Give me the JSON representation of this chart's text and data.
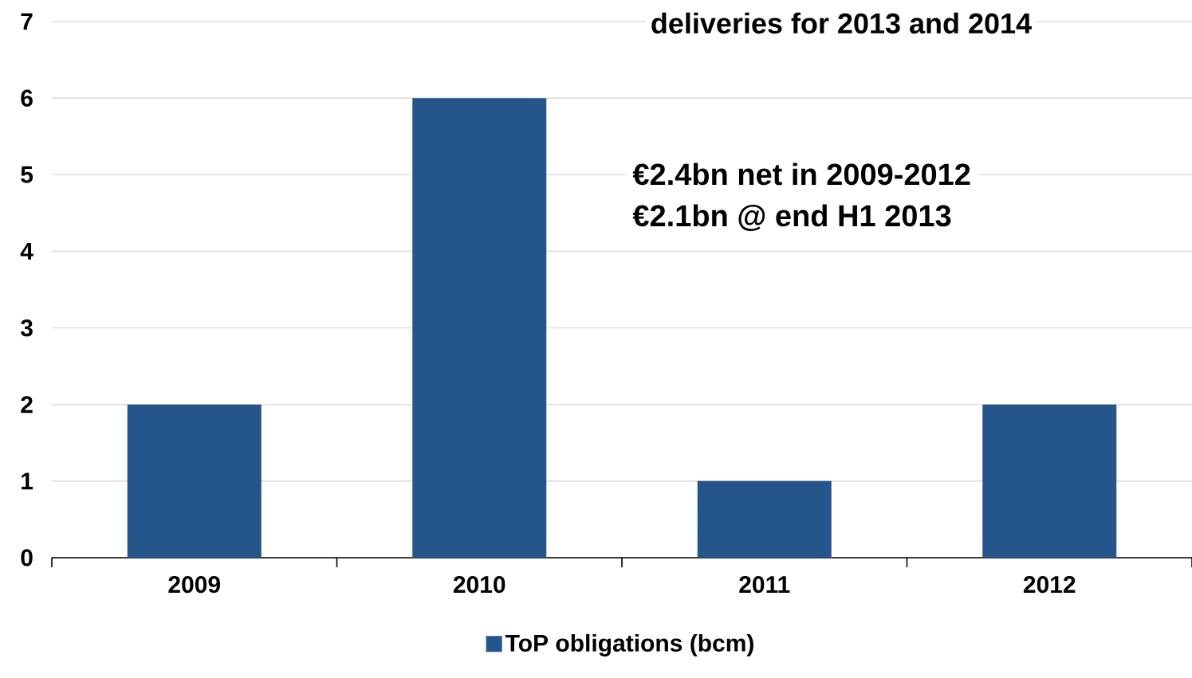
{
  "chart_data": {
    "type": "bar",
    "title": "deliveries for 2013 and 2014",
    "categories": [
      "2009",
      "2010",
      "2011",
      "2012"
    ],
    "series": [
      {
        "name": "ToP obligations (bcm)",
        "color": "#24568b",
        "values": [
          2,
          6,
          1,
          2
        ]
      }
    ],
    "ylim": [
      0,
      7
    ],
    "yticks": [
      0,
      1,
      2,
      3,
      4,
      5,
      6,
      7
    ],
    "grid": "y",
    "legend": "bottom",
    "annotations": [
      "€2.4bn net in 2009-2012",
      "€2.1bn @ end H1 2013"
    ]
  }
}
